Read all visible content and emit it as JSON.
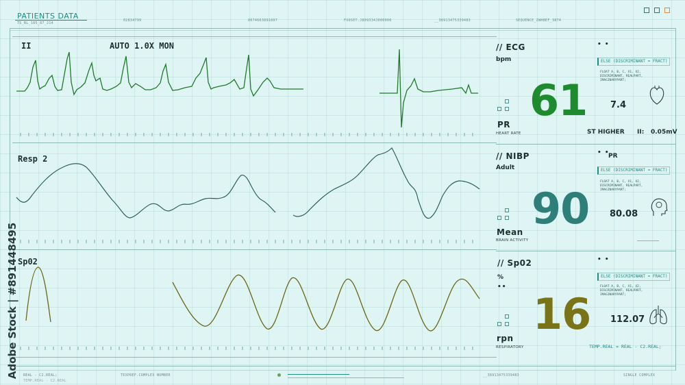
{
  "header": {
    "title": "PATIENTS DATA",
    "subtitle": "TS_BL_185_87_214",
    "codes": [
      "02834799",
      "0074663891897",
      "FX0SET.J809334J000000",
      "__38913475339483",
      "SEQUENCE_ZWHBEF_3874"
    ]
  },
  "waveforms": {
    "ecg": {
      "lead": "II",
      "mode": "AUTO 1.0X MON"
    },
    "resp": {
      "label": "Resp 2"
    },
    "spo2": {
      "label": "Sp02"
    }
  },
  "panels": {
    "ecg": {
      "title": "// ECG",
      "unit": "bpm",
      "value": "61",
      "side_value": "7.4",
      "bottom_label": "PR",
      "bottom_sub": "HEART RATE",
      "extra_label": "ST HIGHER",
      "extra_lead": "II:",
      "extra_value": "0.05mV",
      "else_text": "ELSE (DISCRIMINANT = FRACT)",
      "float_text": "FLOAT A, B, C, X1, X2, DISCRIMINANT, REALPART, IMAGINARYPART;",
      "dots": "• •",
      "color": "#1e8c2e",
      "icon": "heart-icon"
    },
    "nibp": {
      "title": "// NIBP",
      "unit": "Adult",
      "value": "90",
      "side_value": "80.08",
      "bottom_label": "Mean",
      "bottom_sub": "BRAIN ACTIVITY",
      "pr_label": "PR",
      "else_text": "ELSE (DISCRIMINANT = FRACT)",
      "float_text": "FLOAT A, B, C, X1, X2, DISCRIMINANT, REALPART, IMAGINARYPART;",
      "dots": "• •",
      "color": "#2e7e7a",
      "icon": "brain-icon"
    },
    "spo2": {
      "title": "// Sp02",
      "unit": "%",
      "value": "16",
      "side_value": "112.07",
      "bottom_label": "rpn",
      "bottom_sub": "RESPIRATORY",
      "temp_text": "TEMP.REAL = REAL - C2.REAL;",
      "else_text": "ELSE (DISCRIMINANT = FRACT)",
      "float_text": "FLOAT A, B, C, X1, X2, DISCRIMINANT, REALPART, IMAGINARYPART;",
      "dots": "• •",
      "unit_dots": "••",
      "color": "#7a7418",
      "icon": "lungs-icon"
    }
  },
  "footer": {
    "left": "REAL - C2.REAL;",
    "labels": [
      "TEMP.REAL - C2.REAL",
      "TEXPREF.COMPLEX NUMBER",
      "__38913475339483",
      "SINGLE COMPLEX"
    ]
  },
  "watermark": "Adobe Stock | #891448495",
  "colors": {
    "background": "#dff5f3",
    "ecg": "#1e8c2e",
    "resp": "#2e5e5a",
    "spo2": "#7a7418",
    "accent": "#1f8a86"
  }
}
